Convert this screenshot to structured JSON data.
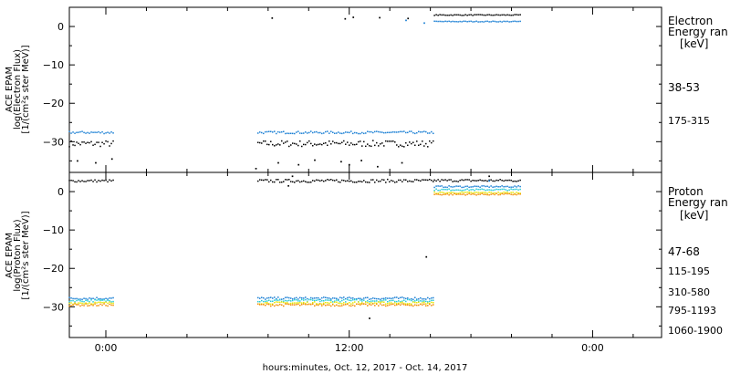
{
  "chart_data": [
    {
      "type": "scatter",
      "ylabel": [
        "ACE EPAM",
        "log(Electron Flux)",
        "[1/(cm²s ster MeV)]"
      ],
      "yticks": [
        0,
        -10,
        -20,
        -30
      ],
      "ylim": [
        -38,
        5
      ],
      "legend": {
        "title": "Electron",
        "subtitle": "Energy ran",
        "unit": "[keV]",
        "entries": [
          {
            "label": "38-53",
            "color": "#000000"
          },
          {
            "label": "175-315",
            "color": "#1a7fd4"
          }
        ]
      },
      "series": [
        {
          "name": "38-53",
          "color": "#000000",
          "segments": [
            {
              "x0": -1.8,
              "x1": 0.4,
              "y": -30.5,
              "jitter": 0.8
            },
            {
              "x0": 7.5,
              "x1": 16.2,
              "y": -30.5,
              "jitter": 0.8
            },
            {
              "x0": 16.2,
              "x1": 20.5,
              "y": 3.0,
              "jitter": 0.1
            }
          ],
          "points": [
            [
              -1.4,
              -35
            ],
            [
              -0.5,
              -35.5
            ],
            [
              0.3,
              -34.5
            ],
            [
              7.4,
              -37
            ],
            [
              8.5,
              -35.5
            ],
            [
              9.5,
              -36
            ],
            [
              10.3,
              -34.8
            ],
            [
              11.6,
              -35.2
            ],
            [
              12.0,
              -36
            ],
            [
              12.6,
              -34.9
            ],
            [
              13.4,
              -36.5
            ],
            [
              14.6,
              -35.5
            ],
            [
              8.2,
              2.2
            ],
            [
              11.8,
              2.0
            ],
            [
              12.2,
              2.4
            ],
            [
              13.5,
              2.3
            ],
            [
              14.9,
              2.1
            ]
          ]
        },
        {
          "name": "175-315",
          "color": "#1a7fd4",
          "segments": [
            {
              "x0": -1.8,
              "x1": 0.4,
              "y": -27.6,
              "jitter": 0.3
            },
            {
              "x0": 7.5,
              "x1": 16.2,
              "y": -27.6,
              "jitter": 0.3
            },
            {
              "x0": 16.2,
              "x1": 20.5,
              "y": 1.3,
              "jitter": 0.1
            }
          ],
          "points": [
            [
              15.7,
              0.9
            ],
            [
              14.8,
              1.6
            ]
          ]
        }
      ]
    },
    {
      "type": "scatter",
      "ylabel": [
        "ACE EPAM",
        "log(Proton Flux)",
        "[1/(cm²s ster MeV)]"
      ],
      "yticks": [
        0,
        -10,
        -20,
        -30
      ],
      "ylim": [
        -38,
        5
      ],
      "xlabel": "hours:minutes, Oct. 12, 2017 - Oct. 14, 2017",
      "xticklabels": [
        "0:00",
        "12:00",
        "0:00"
      ],
      "xtick_hours": [
        0,
        12,
        24
      ],
      "xlim": [
        -1.8,
        27.4
      ],
      "legend": {
        "title": "Proton",
        "subtitle": "Energy ran",
        "unit": "[keV]",
        "entries": [
          {
            "label": "47-68",
            "color": "#000000"
          },
          {
            "label": "115-195",
            "color": "#1a7fd4"
          },
          {
            "label": "310-580",
            "color": "#27c9d6"
          },
          {
            "label": "795-1193",
            "color": "#e6e600"
          },
          {
            "label": "1060-1900",
            "color": "#f28c00"
          }
        ]
      },
      "series": [
        {
          "name": "47-68",
          "color": "#000000",
          "segments": [
            {
              "x0": -1.8,
              "x1": 0.4,
              "y": 2.8,
              "jitter": 0.3
            },
            {
              "x0": 7.5,
              "x1": 16.2,
              "y": 2.8,
              "jitter": 0.4
            },
            {
              "x0": 16.2,
              "x1": 20.5,
              "y": 2.9,
              "jitter": 0.3
            }
          ],
          "points": [
            [
              15.8,
              -17
            ],
            [
              13.0,
              -33
            ],
            [
              9.0,
              1.5
            ],
            [
              9.2,
              4.0
            ],
            [
              18.9,
              4.0
            ]
          ]
        },
        {
          "name": "115-195",
          "color": "#1a7fd4",
          "segments": [
            {
              "x0": -1.8,
              "x1": 0.4,
              "y": -27.8,
              "jitter": 0.3
            },
            {
              "x0": 7.5,
              "x1": 16.2,
              "y": -27.8,
              "jitter": 0.3
            },
            {
              "x0": 16.2,
              "x1": 20.5,
              "y": 1.3,
              "jitter": 0.2
            }
          ],
          "points": [
            [
              18.9,
              2.8
            ]
          ]
        },
        {
          "name": "310-580",
          "color": "#27c9d6",
          "segments": [
            {
              "x0": -1.8,
              "x1": 0.4,
              "y": -28.4,
              "jitter": 0.3
            },
            {
              "x0": 7.5,
              "x1": 16.2,
              "y": -28.4,
              "jitter": 0.3
            },
            {
              "x0": 16.2,
              "x1": 20.5,
              "y": 0.5,
              "jitter": 0.2
            }
          ],
          "points": []
        },
        {
          "name": "795-1193",
          "color": "#e6e600",
          "segments": [
            {
              "x0": -1.8,
              "x1": 0.4,
              "y": -29.0,
              "jitter": 0.3
            },
            {
              "x0": 7.5,
              "x1": 16.2,
              "y": -29.0,
              "jitter": 0.3
            },
            {
              "x0": 16.2,
              "x1": 20.5,
              "y": -0.3,
              "jitter": 0.2
            }
          ],
          "points": []
        },
        {
          "name": "1060-1900",
          "color": "#f28c00",
          "segments": [
            {
              "x0": -1.8,
              "x1": 0.4,
              "y": -29.5,
              "jitter": 0.3
            },
            {
              "x0": 7.5,
              "x1": 16.2,
              "y": -29.5,
              "jitter": 0.3
            },
            {
              "x0": 16.2,
              "x1": 20.5,
              "y": -0.7,
              "jitter": 0.2
            }
          ],
          "points": []
        }
      ]
    }
  ]
}
